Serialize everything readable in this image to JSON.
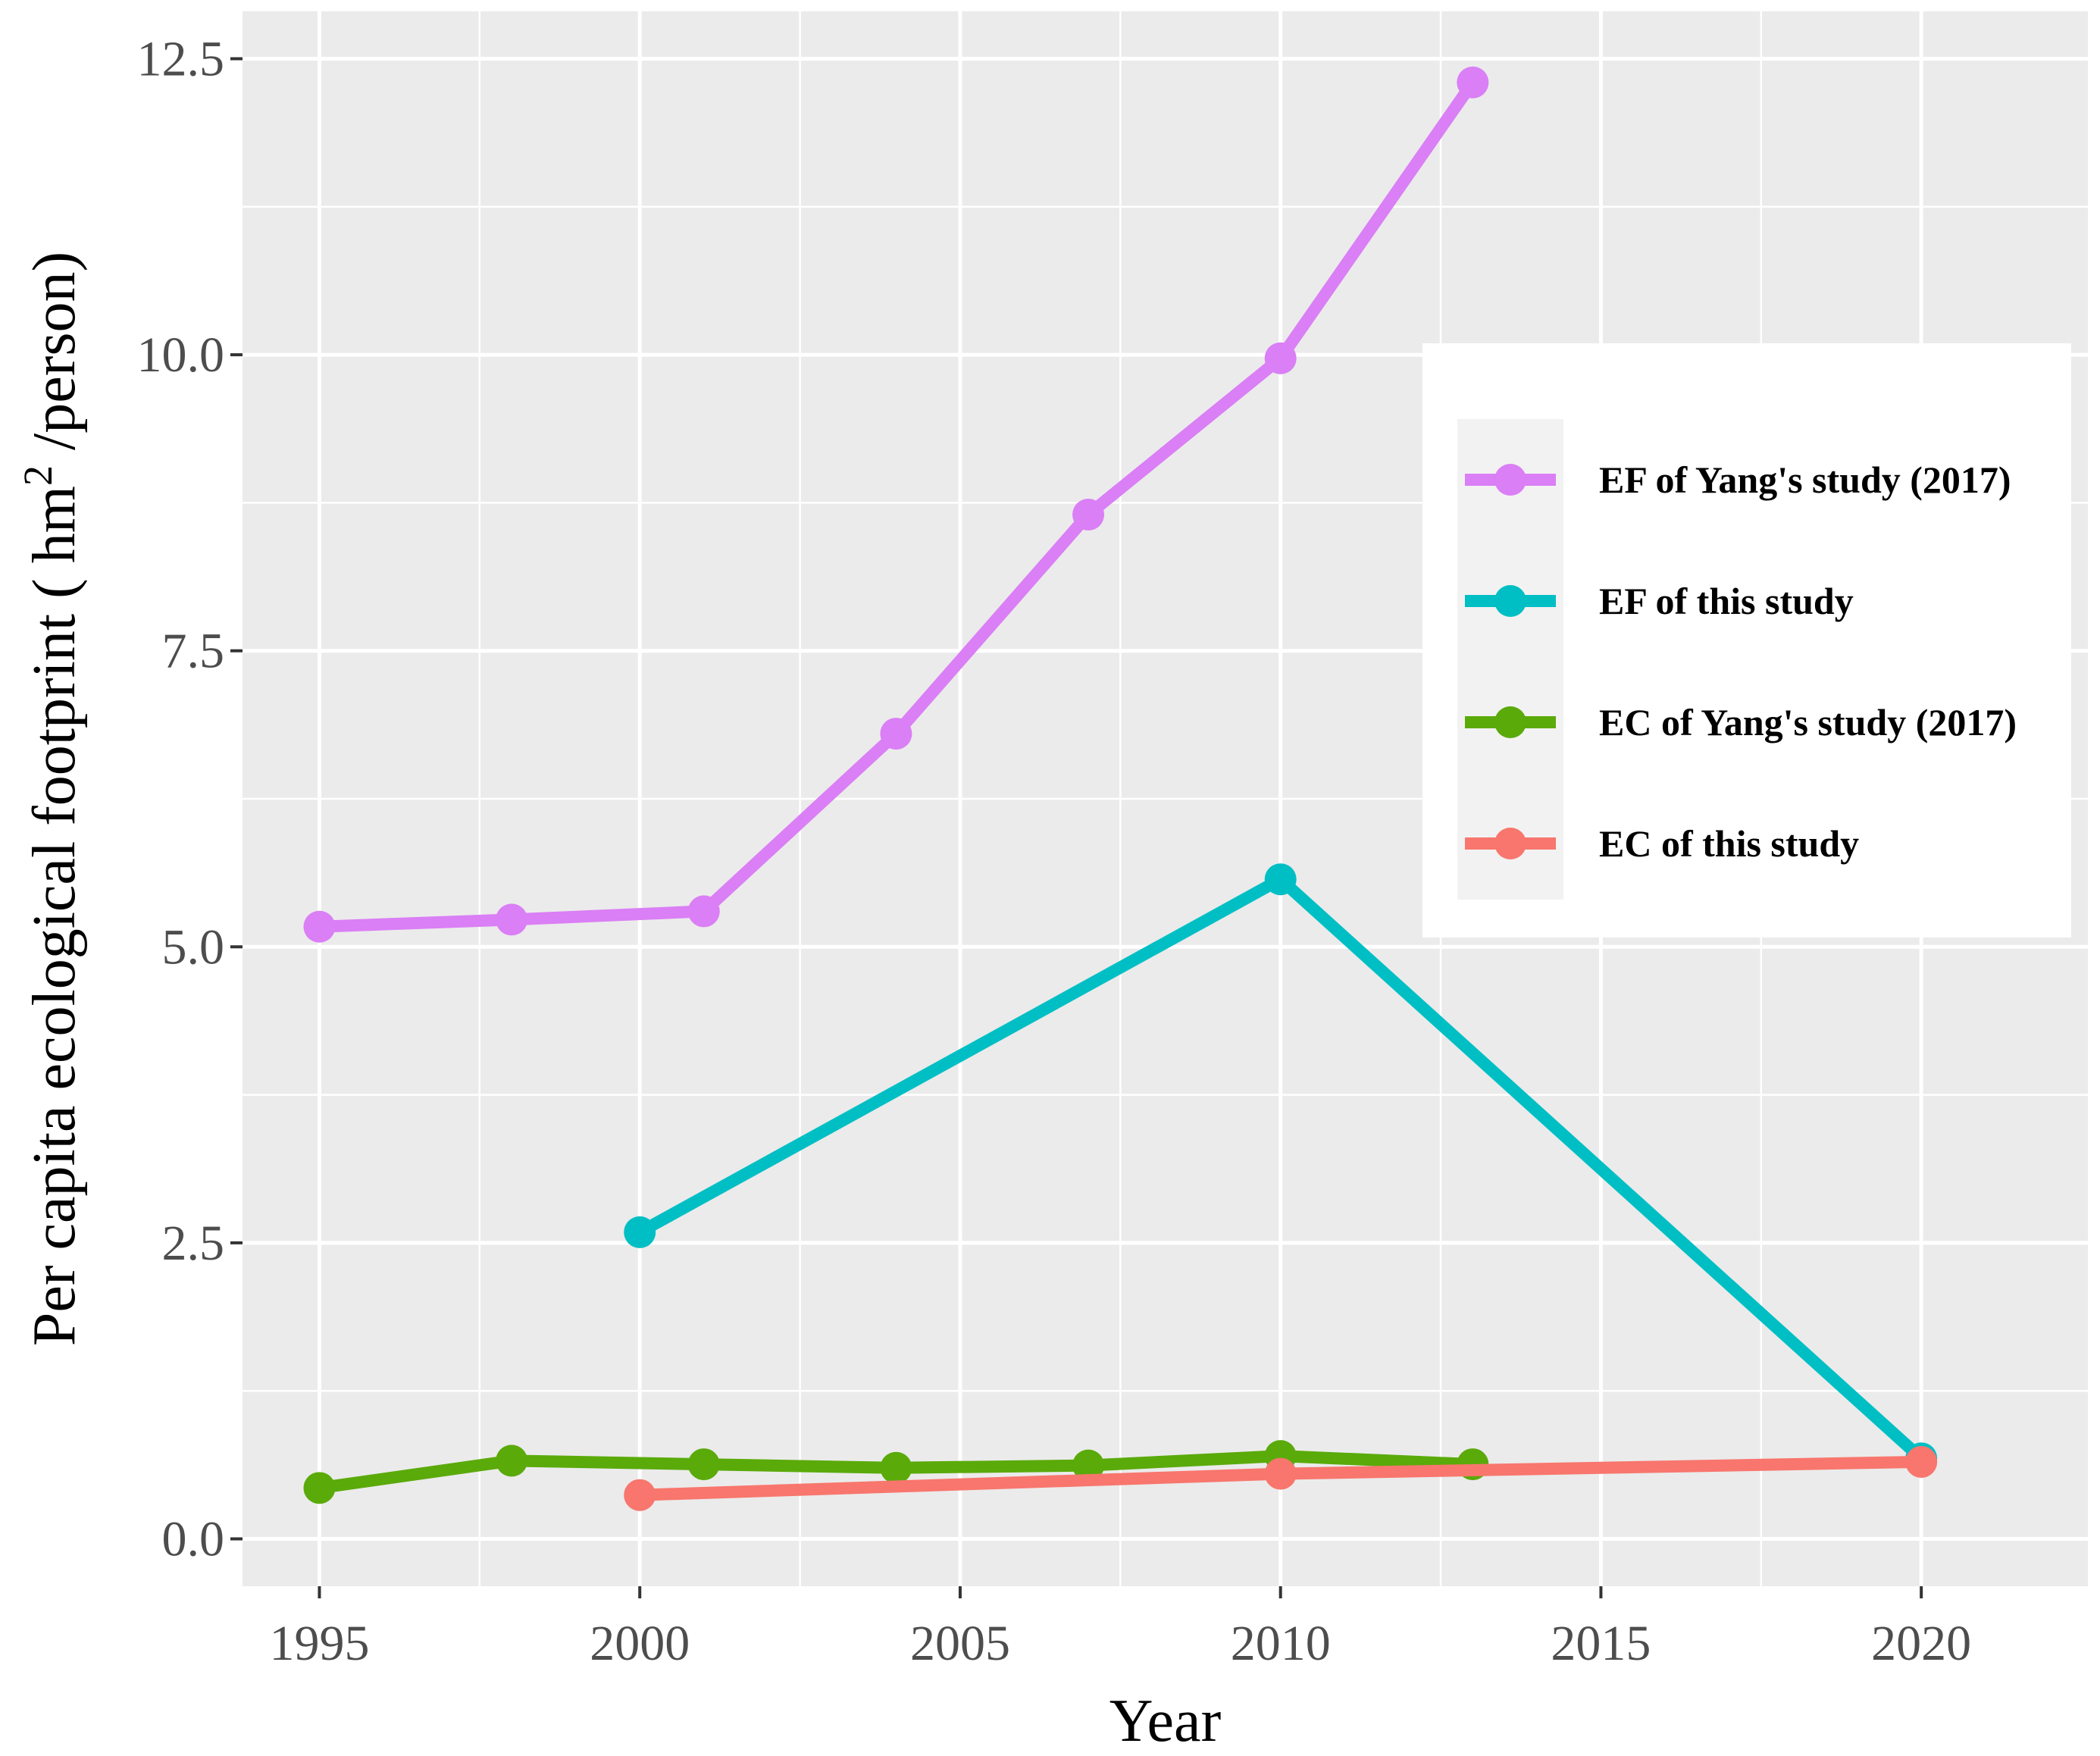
{
  "chart_data": {
    "type": "line",
    "xlabel": "Year",
    "ylabel": {
      "before": "Per capita ecological footprint ( hm",
      "superscript": "2",
      "after": " /person)"
    },
    "xlim": [
      1993.8,
      2022.6
    ],
    "ylim": [
      -0.4,
      12.9
    ],
    "x_ticks": [
      1995,
      2000,
      2005,
      2010,
      2015,
      2020
    ],
    "y_ticks": [
      0,
      2.5,
      5,
      7.5,
      10,
      12.5
    ],
    "y_tick_labels": [
      "0.0",
      "2.5",
      "5.0",
      "7.5",
      "10.0",
      "12.5"
    ],
    "grid": true,
    "legend_position": "right",
    "background": "#ebebeb",
    "series": [
      {
        "name": "EF of Yang's study (2017)",
        "color": "#da7ff5",
        "points": [
          [
            1995,
            5.17
          ],
          [
            1998,
            5.23
          ],
          [
            2001,
            5.3
          ],
          [
            2004,
            6.8
          ],
          [
            2007,
            8.65
          ],
          [
            2010,
            9.97
          ],
          [
            2013,
            12.3
          ]
        ]
      },
      {
        "name": "EF of this study",
        "color": "#00bfc4",
        "points": [
          [
            2000,
            2.59
          ],
          [
            2010,
            5.57
          ],
          [
            2020,
            0.68
          ]
        ]
      },
      {
        "name": "EC of Yang's study (2017)",
        "color": "#5aaa0a",
        "points": [
          [
            1995,
            0.43
          ],
          [
            1998,
            0.66
          ],
          [
            2001,
            0.63
          ],
          [
            2004,
            0.6
          ],
          [
            2007,
            0.62
          ],
          [
            2010,
            0.7
          ],
          [
            2013,
            0.63
          ]
        ]
      },
      {
        "name": "EC of this study",
        "color": "#f8766d",
        "points": [
          [
            2000,
            0.37
          ],
          [
            2010,
            0.55
          ],
          [
            2020,
            0.65
          ]
        ]
      }
    ]
  }
}
